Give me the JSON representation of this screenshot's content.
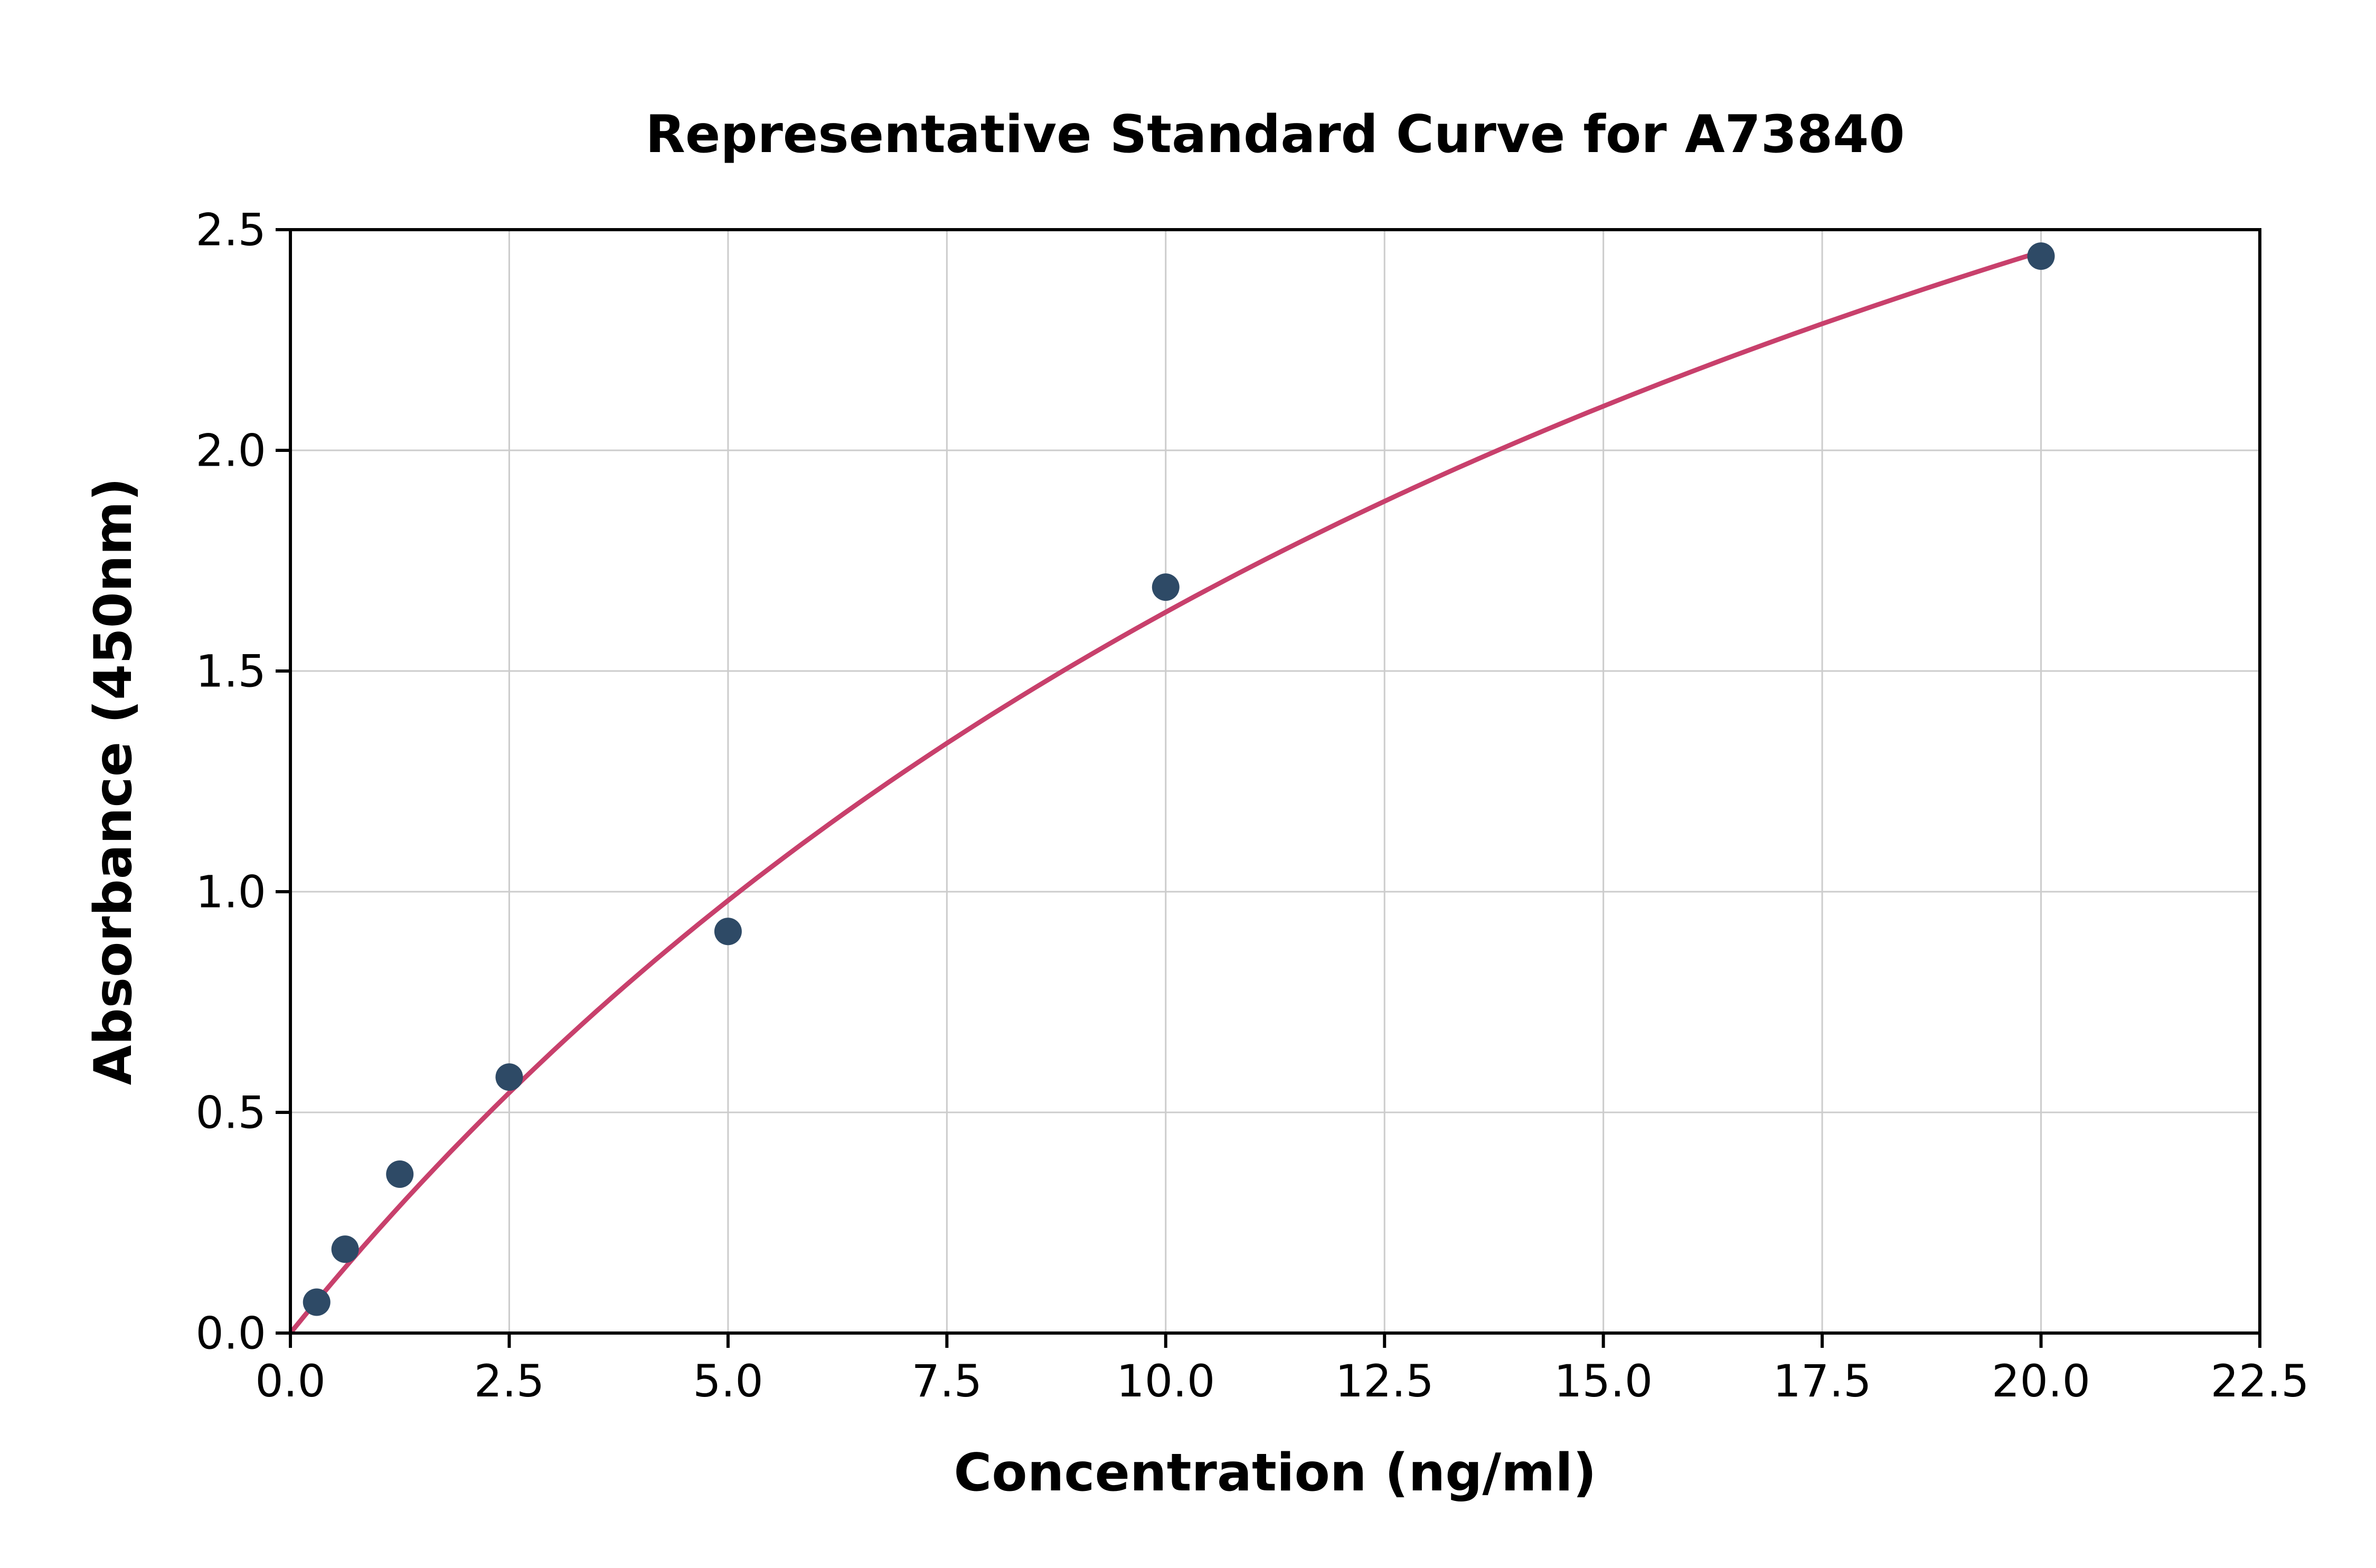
{
  "chart_data": {
    "type": "scatter",
    "title": "Representative Standard Curve for A73840",
    "xlabel": "Concentration (ng/ml)",
    "ylabel": "Absorbance (450nm)",
    "xlim": [
      0,
      22.5
    ],
    "ylim": [
      0,
      2.5
    ],
    "x_ticks": [
      0.0,
      2.5,
      5.0,
      7.5,
      10.0,
      12.5,
      15.0,
      17.5,
      20.0,
      22.5
    ],
    "x_tick_labels": [
      "0.0",
      "2.5",
      "5.0",
      "7.5",
      "10.0",
      "12.5",
      "15.0",
      "17.5",
      "20.0",
      "22.5"
    ],
    "y_ticks": [
      0.0,
      0.5,
      1.0,
      1.5,
      2.0,
      2.5
    ],
    "y_tick_labels": [
      "0.0",
      "0.5",
      "1.0",
      "1.5",
      "2.0",
      "2.5"
    ],
    "grid": true,
    "legend": "none",
    "points": [
      {
        "x": 0.3,
        "y": 0.07
      },
      {
        "x": 0.625,
        "y": 0.19
      },
      {
        "x": 1.25,
        "y": 0.36
      },
      {
        "x": 2.5,
        "y": 0.58
      },
      {
        "x": 5.0,
        "y": 0.91
      },
      {
        "x": 10.0,
        "y": 1.69
      },
      {
        "x": 20.0,
        "y": 2.44
      }
    ],
    "fit_curve": {
      "model": "saturation y = a*x/(b+x)",
      "a": 4.9,
      "b": 20,
      "x_range": [
        0,
        20
      ]
    },
    "colors": {
      "points": "#2e4a66",
      "curve": "#c8406c",
      "grid": "#cccccc",
      "axis": "#000000",
      "background": "#ffffff"
    }
  }
}
